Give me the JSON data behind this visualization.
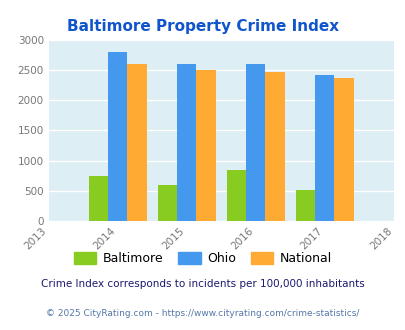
{
  "title": "Baltimore Property Crime Index",
  "years": [
    2013,
    2014,
    2015,
    2016,
    2017,
    2018
  ],
  "categories": [
    "Baltimore",
    "Ohio",
    "National"
  ],
  "values": {
    "Baltimore": [
      750,
      590,
      840,
      510
    ],
    "Ohio": [
      2790,
      2590,
      2590,
      2420
    ],
    "National": [
      2600,
      2500,
      2460,
      2360
    ]
  },
  "bar_years": [
    2014,
    2015,
    2016,
    2017
  ],
  "colors": {
    "Baltimore": "#88cc22",
    "Ohio": "#4499ee",
    "National": "#ffaa33"
  },
  "xlim": [
    2013,
    2018
  ],
  "ylim": [
    0,
    3000
  ],
  "yticks": [
    0,
    500,
    1000,
    1500,
    2000,
    2500,
    3000
  ],
  "background_color": "#ddeef4",
  "grid_color": "#ffffff",
  "title_color": "#1155cc",
  "tick_color": "#777777",
  "legend_labels": [
    "Baltimore",
    "Ohio",
    "National"
  ],
  "footnote1": "Crime Index corresponds to incidents per 100,000 inhabitants",
  "footnote2": "© 2025 CityRating.com - https://www.cityrating.com/crime-statistics/",
  "bar_width": 0.28
}
